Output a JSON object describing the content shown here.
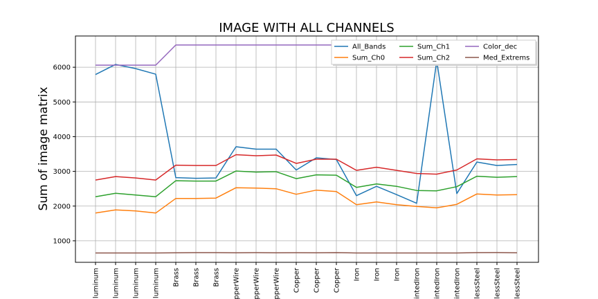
{
  "chart_data": {
    "type": "line",
    "title": "IMAGE WITH ALL CHANNELS",
    "xlabel": "",
    "ylabel": "Sum of image matrix",
    "categories": [
      "luminum",
      "luminum",
      "luminum",
      "luminum",
      "Brass",
      "Brass",
      "Brass",
      "pperWire",
      "pperWire",
      "pperWire",
      "Copper",
      "Copper",
      "Copper",
      "Iron",
      "Iron",
      "Iron",
      "intedIron",
      "intedIron",
      "intedIron",
      "lessSteel",
      "lessSteel",
      "lessSteel"
    ],
    "yticks": [
      1000,
      2000,
      3000,
      4000,
      5000,
      6000
    ],
    "ylim": [
      380,
      6900
    ],
    "grid": true,
    "legend_position": "top-right",
    "series": [
      {
        "name": "All_Bands",
        "color": "#1f77b4",
        "values": [
          5790,
          6080,
          5960,
          5800,
          2820,
          2800,
          2810,
          3710,
          3640,
          3640,
          3040,
          3390,
          3340,
          2300,
          2570,
          2330,
          2080,
          6190,
          2360,
          3270,
          3170,
          3200
        ]
      },
      {
        "name": "Sum_Ch0",
        "color": "#ff7f0e",
        "values": [
          1800,
          1890,
          1860,
          1800,
          2220,
          2220,
          2230,
          2530,
          2520,
          2500,
          2340,
          2460,
          2420,
          2040,
          2120,
          2040,
          1990,
          1950,
          2050,
          2350,
          2320,
          2330
        ]
      },
      {
        "name": "Sum_Ch1",
        "color": "#2ca02c",
        "values": [
          2270,
          2370,
          2320,
          2270,
          2730,
          2720,
          2720,
          3010,
          2980,
          2990,
          2790,
          2900,
          2890,
          2540,
          2640,
          2570,
          2450,
          2440,
          2560,
          2860,
          2830,
          2850
        ]
      },
      {
        "name": "Sum_Ch2",
        "color": "#d62728",
        "values": [
          2750,
          2850,
          2810,
          2750,
          3180,
          3170,
          3170,
          3480,
          3450,
          3470,
          3230,
          3350,
          3350,
          3030,
          3120,
          3030,
          2940,
          2920,
          3040,
          3360,
          3330,
          3340
        ]
      },
      {
        "name": "Color_dec",
        "color": "#9467bd",
        "values": [
          6060,
          6060,
          6060,
          6060,
          6640,
          6640,
          6640,
          6640,
          6640,
          6640,
          6640,
          6640,
          6640,
          6640,
          6640,
          6640,
          6060,
          6060,
          6060,
          6060,
          6060,
          6060
        ]
      },
      {
        "name": "Med_Extrems",
        "color": "#8c564b",
        "values": [
          650,
          650,
          650,
          650,
          655,
          660,
          660,
          655,
          660,
          655,
          658,
          655,
          660,
          650,
          650,
          650,
          650,
          650,
          650,
          660,
          662,
          655
        ]
      }
    ]
  }
}
